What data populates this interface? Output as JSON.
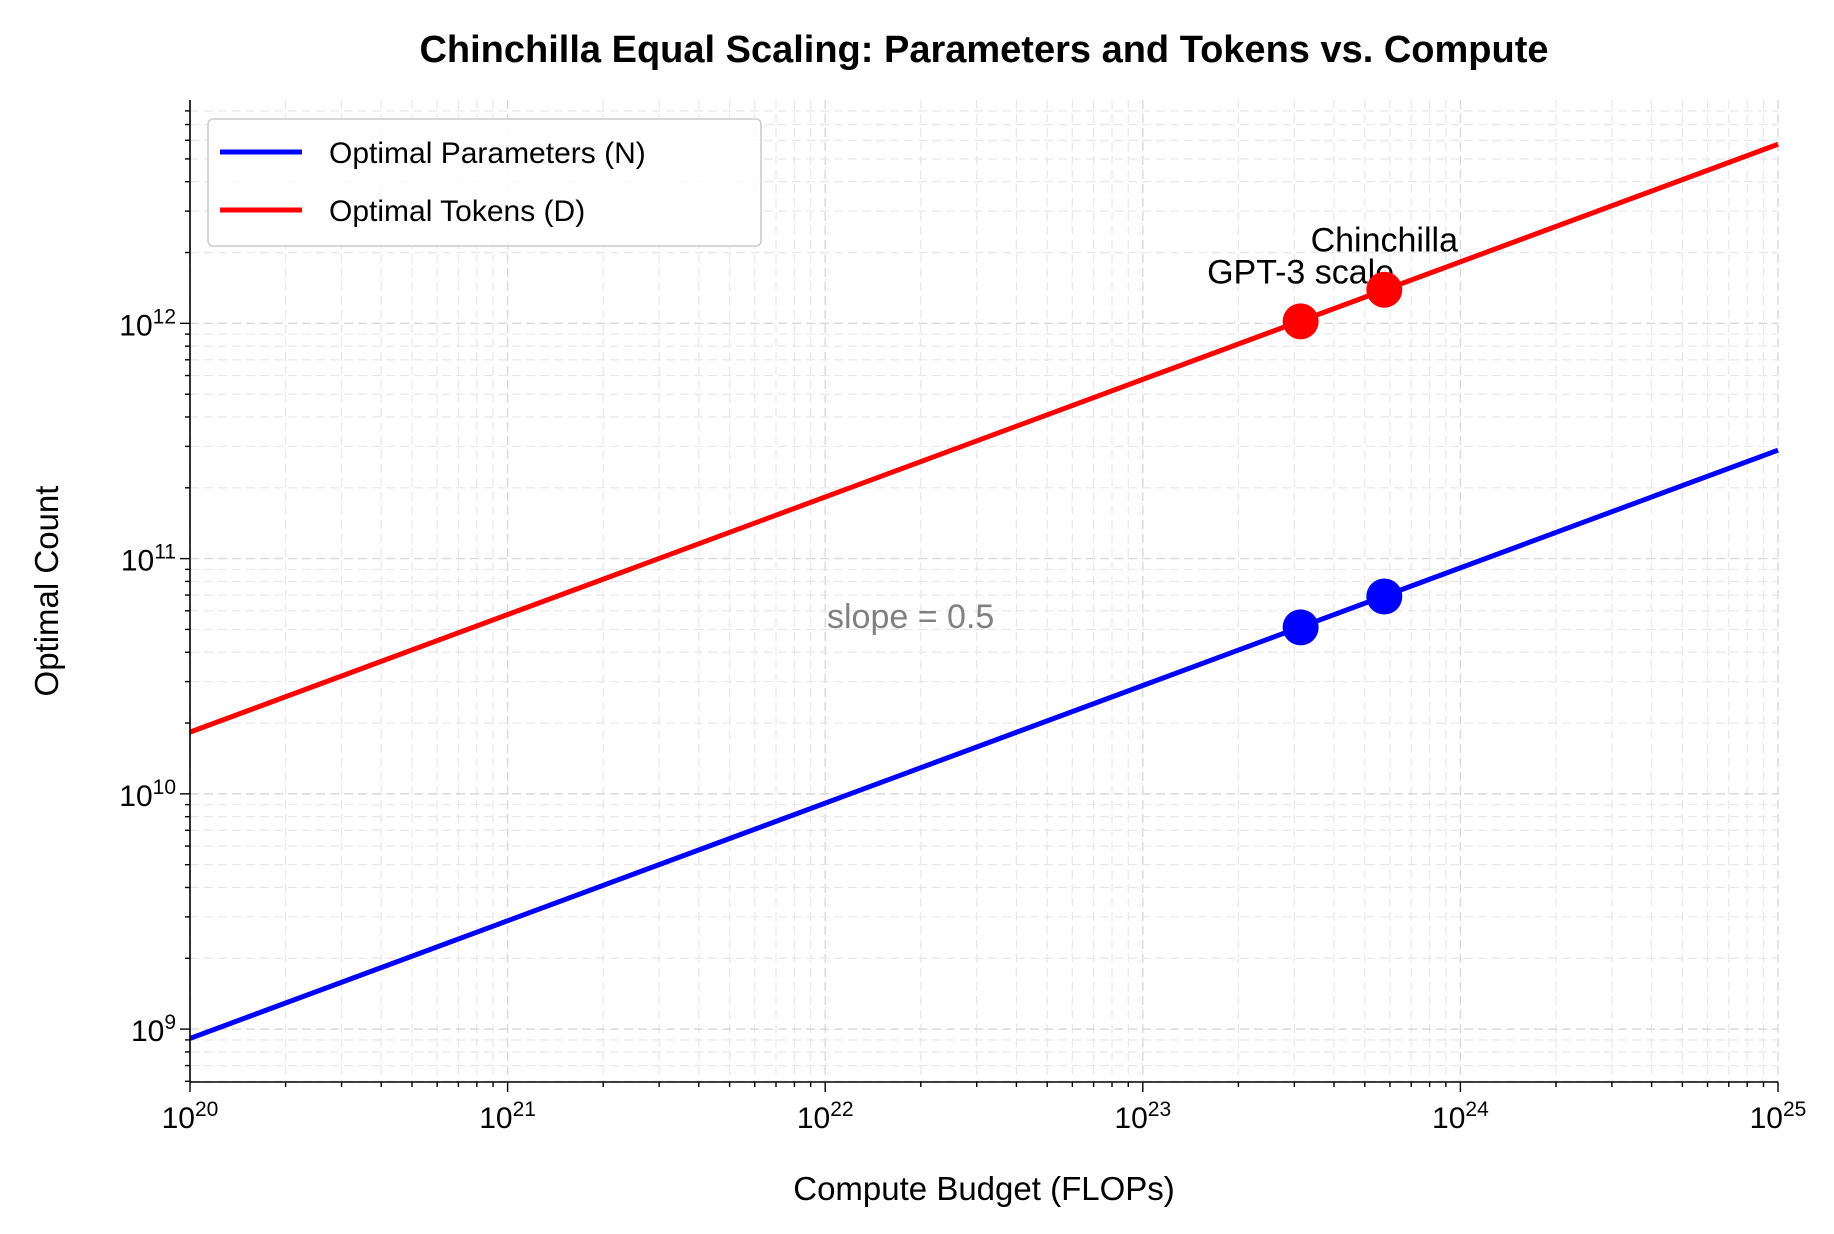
{
  "chart_data": {
    "type": "line",
    "title": "Chinchilla Equal Scaling: Parameters and Tokens vs. Compute",
    "xlabel": "Compute Budget (FLOPs)",
    "ylabel": "Optimal Count",
    "xscale": "log",
    "yscale": "log",
    "xlim": [
      1e+20,
      1e+25
    ],
    "ylim": [
      596000000.0,
      8900000000000.0
    ],
    "grid": true,
    "legend_placement": "upper-left",
    "x_ticks": [
      {
        "base": "10",
        "exp": "20",
        "value": 1e+20
      },
      {
        "base": "10",
        "exp": "21",
        "value": 1e+21
      },
      {
        "base": "10",
        "exp": "22",
        "value": 1e+22
      },
      {
        "base": "10",
        "exp": "23",
        "value": 1e+23
      },
      {
        "base": "10",
        "exp": "24",
        "value": 1e+24
      },
      {
        "base": "10",
        "exp": "25",
        "value": 1e+25
      }
    ],
    "y_ticks": [
      {
        "base": "10",
        "exp": "9",
        "value": 1000000000.0
      },
      {
        "base": "10",
        "exp": "10",
        "value": 10000000000.0
      },
      {
        "base": "10",
        "exp": "11",
        "value": 100000000000.0
      },
      {
        "base": "10",
        "exp": "12",
        "value": 1000000000000.0
      }
    ],
    "series": [
      {
        "name": "Optimal Parameters (N)",
        "color": "#0000ff",
        "x": [
          1e+20,
          1e+25
        ],
        "y": [
          913000000.0,
          289000000000.0
        ]
      },
      {
        "name": "Optimal Tokens (D)",
        "color": "#ff0000",
        "x": [
          1e+20,
          1e+25
        ],
        "y": [
          18300000000.0,
          5770000000000.0
        ]
      }
    ],
    "points": [
      {
        "label": "GPT-3 scale",
        "x": 3.14e+23,
        "N": 51000000000.0,
        "D": 1020000000000.0
      },
      {
        "label": "Chinchilla",
        "x": 5.76e+23,
        "N": 69000000000.0,
        "D": 1390000000000.0
      }
    ],
    "annotations": [
      {
        "text": "slope = 0.5",
        "x": 1e+22,
        "y": 55000000000.0,
        "color": "#808080"
      }
    ]
  }
}
